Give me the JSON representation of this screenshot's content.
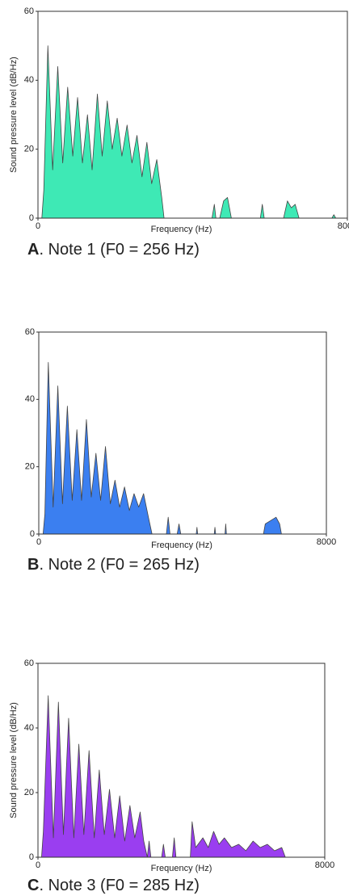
{
  "chart_data": [
    {
      "type": "area",
      "label": "A",
      "caption": ". Note 1 (F0 = 256 Hz)",
      "x_label": "Frequency (Hz)",
      "y_label": "Sound pressure level (dB/Hz)",
      "color": "#3ee9b5",
      "x": [
        0,
        100,
        150,
        256,
        380,
        512,
        640,
        768,
        900,
        1024,
        1150,
        1280,
        1400,
        1536,
        1660,
        1792,
        1920,
        2048,
        2170,
        2304,
        2430,
        2560,
        2690,
        2816,
        2940,
        3072,
        3200,
        3260,
        4500,
        4560,
        4600,
        4700,
        4800,
        4900,
        5000,
        5750,
        5800,
        5850,
        6350,
        6450,
        6550,
        6650,
        6750,
        7600,
        7650,
        7700,
        8000
      ],
      "values": [
        0,
        0,
        8,
        50,
        14,
        44,
        16,
        38,
        18,
        35,
        16,
        30,
        14,
        36,
        18,
        34,
        20,
        29,
        18,
        27,
        16,
        24,
        12,
        22,
        10,
        17,
        6,
        0,
        0,
        4,
        0,
        0,
        5,
        6,
        0,
        0,
        4,
        0,
        0,
        5,
        3,
        4,
        0,
        0,
        1,
        0,
        0
      ],
      "xlim": [
        0,
        8000
      ],
      "ylim": [
        0,
        60
      ],
      "xticks": [
        0,
        8000
      ],
      "yticks": [
        0,
        20,
        40,
        60
      ]
    },
    {
      "type": "area",
      "label": "B",
      "caption": ". Note 2 (F0 = 265 Hz)",
      "x_label": "Frequency (Hz)",
      "color": "#3b7ff0",
      "x": [
        0,
        120,
        170,
        265,
        400,
        530,
        660,
        795,
        930,
        1060,
        1190,
        1325,
        1460,
        1590,
        1720,
        1855,
        1990,
        2120,
        2250,
        2385,
        2520,
        2650,
        2780,
        2915,
        3050,
        3150,
        3550,
        3600,
        3650,
        3850,
        3900,
        3950,
        4380,
        4400,
        4420,
        4880,
        4900,
        4920,
        5180,
        5200,
        5220,
        6250,
        6300,
        6450,
        6600,
        6700,
        6750,
        8000
      ],
      "values": [
        0,
        0,
        6,
        51,
        8,
        44,
        9,
        38,
        10,
        31,
        10,
        34,
        11,
        24,
        10,
        26,
        9,
        16,
        8,
        14,
        7,
        12,
        8,
        12,
        5,
        0,
        0,
        5,
        0,
        0,
        3,
        0,
        0,
        2,
        0,
        0,
        2,
        0,
        0,
        3,
        0,
        0,
        3,
        4,
        5,
        3,
        0,
        0
      ],
      "xlim": [
        0,
        8000
      ],
      "ylim": [
        0,
        60
      ],
      "xticks": [
        0,
        8000
      ],
      "yticks": [
        0,
        20,
        40,
        60
      ]
    },
    {
      "type": "area",
      "label": "C",
      "caption": ". Note 3 (F0 = 285 Hz)",
      "x_label": "Frequency (Hz)",
      "y_label": "Sound pressure level (dB/Hz)",
      "color": "#9a3ef0",
      "x": [
        0,
        100,
        150,
        285,
        430,
        570,
        710,
        855,
        1000,
        1140,
        1280,
        1425,
        1570,
        1710,
        1850,
        1995,
        2140,
        2280,
        2420,
        2565,
        2700,
        2850,
        2950,
        3050,
        3100,
        3150,
        3450,
        3500,
        3550,
        3750,
        3800,
        3850,
        4250,
        4300,
        4400,
        4600,
        4750,
        4900,
        5050,
        5200,
        5400,
        5600,
        5800,
        6000,
        6200,
        6400,
        6600,
        6800,
        6900,
        8000
      ],
      "values": [
        0,
        0,
        8,
        50,
        6,
        48,
        7,
        43,
        6,
        35,
        7,
        33,
        6,
        27,
        7,
        21,
        6,
        19,
        5,
        16,
        6,
        14,
        5,
        0,
        5,
        0,
        0,
        4,
        0,
        0,
        6,
        0,
        0,
        11,
        3,
        6,
        3,
        8,
        4,
        6,
        3,
        4,
        2,
        5,
        3,
        4,
        2,
        3,
        0,
        0
      ],
      "xlim": [
        0,
        8000
      ],
      "ylim": [
        0,
        60
      ],
      "xticks": [
        0,
        8000
      ],
      "yticks": [
        0,
        20,
        40,
        60
      ]
    }
  ]
}
